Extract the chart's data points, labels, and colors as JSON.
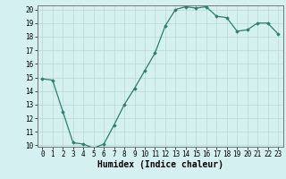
{
  "x": [
    0,
    1,
    2,
    3,
    4,
    5,
    6,
    7,
    8,
    9,
    10,
    11,
    12,
    13,
    14,
    15,
    16,
    17,
    18,
    19,
    20,
    21,
    22,
    23
  ],
  "y": [
    14.9,
    14.8,
    12.5,
    10.2,
    10.1,
    9.8,
    10.1,
    11.5,
    13.0,
    14.2,
    15.5,
    16.8,
    18.8,
    20.0,
    20.2,
    20.1,
    20.2,
    19.5,
    19.4,
    18.4,
    18.5,
    19.0,
    19.0,
    18.2
  ],
  "xlabel": "Humidex (Indice chaleur)",
  "ylim": [
    10,
    20
  ],
  "xlim": [
    0,
    23
  ],
  "yticks": [
    10,
    11,
    12,
    13,
    14,
    15,
    16,
    17,
    18,
    19,
    20
  ],
  "xticks": [
    0,
    1,
    2,
    3,
    4,
    5,
    6,
    7,
    8,
    9,
    10,
    11,
    12,
    13,
    14,
    15,
    16,
    17,
    18,
    19,
    20,
    21,
    22,
    23
  ],
  "line_color": "#2e7d6e",
  "marker": "D",
  "marker_size": 1.8,
  "bg_color": "#d4f0f0",
  "grid_color": "#b8d8d0",
  "xlabel_fontsize": 7,
  "tick_fontsize": 5.5
}
